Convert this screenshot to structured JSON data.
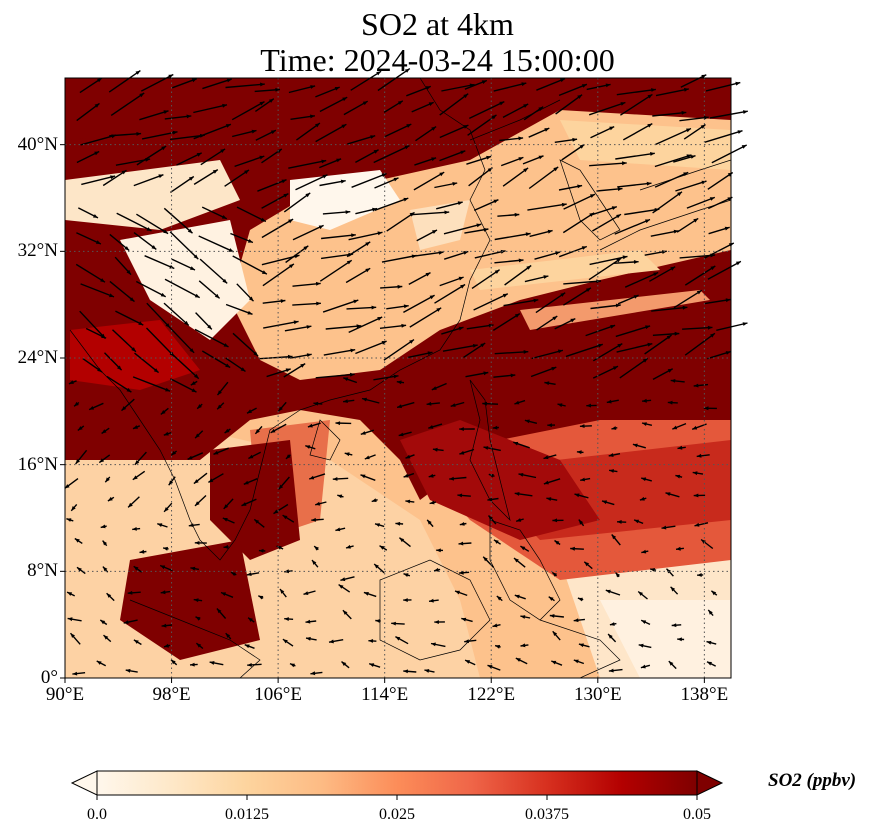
{
  "title": "SO2 at 4km",
  "subtitle": "Time: 2024-03-24 15:00:00",
  "map": {
    "lon_range": [
      90,
      140
    ],
    "lat_range": [
      0,
      45
    ],
    "x_ticks": [
      "90°E",
      "98°E",
      "106°E",
      "114°E",
      "122°E",
      "130°E",
      "138°E"
    ],
    "x_tick_values": [
      90,
      98,
      106,
      114,
      122,
      130,
      138
    ],
    "y_ticks": [
      "0°",
      "8°N",
      "16°N",
      "24°N",
      "32°N",
      "40°N"
    ],
    "y_tick_values": [
      0,
      8,
      16,
      24,
      32,
      40
    ],
    "gridlines": true,
    "vectors": "wind arrows"
  },
  "colorbar": {
    "label": "SO2 (ppbv)",
    "ticks": [
      "0.0",
      "0.0125",
      "0.025",
      "0.0375",
      "0.05"
    ],
    "tick_values": [
      0.0,
      0.0125,
      0.025,
      0.0375,
      0.05
    ],
    "colormap": "OrRd",
    "extend": "both",
    "colors": [
      "#fff7ec",
      "#fee8c8",
      "#fdd49e",
      "#fdbb84",
      "#fc8d59",
      "#ef6548",
      "#d7301f",
      "#b30000",
      "#7f0000"
    ]
  }
}
